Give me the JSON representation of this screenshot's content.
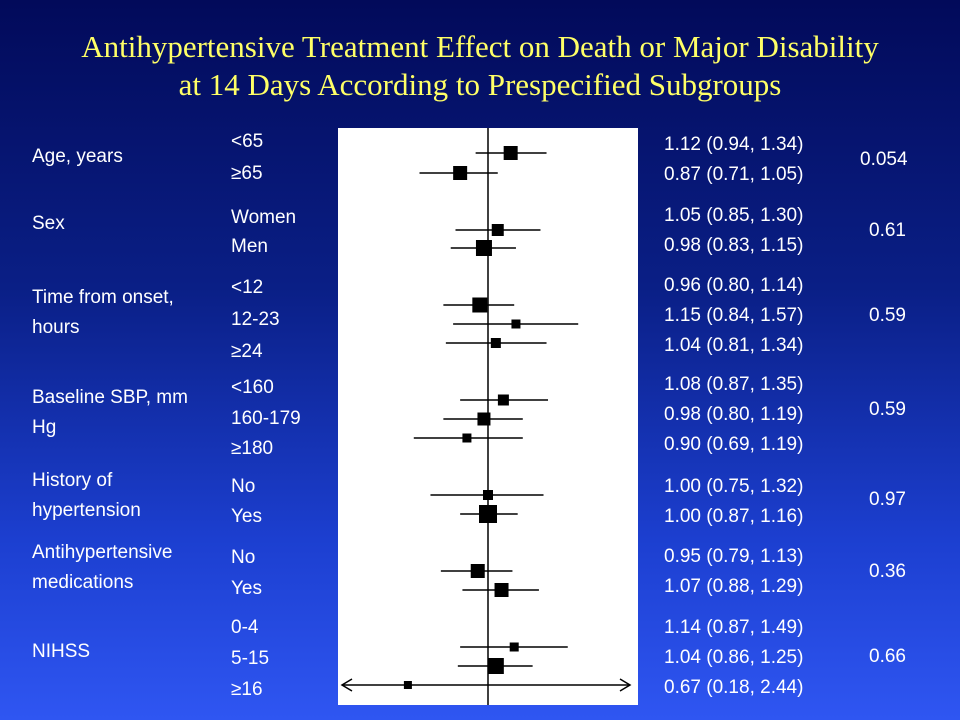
{
  "title_line1": "Antihypertensive Treatment Effect on Death or Major Disability",
  "title_line2": "at 14 Days According to Prespecified Subgroups",
  "colors": {
    "title": "#ffff66",
    "text": "#ffffff",
    "marker": "#000000",
    "panel": "#ffffff"
  },
  "chart_data": {
    "type": "forest",
    "reference_value": 1.0,
    "x_scale": "log",
    "xlim": [
      0.18,
      2.44
    ],
    "groups": [
      {
        "label": "Age, years",
        "p_value": "0.054",
        "rows": [
          {
            "subgroup": "<65",
            "estimate": 1.12,
            "lower": 0.94,
            "upper": 1.34,
            "ci_text": "1.12 (0.94, 1.34)"
          },
          {
            "subgroup": "≥65",
            "estimate": 0.87,
            "lower": 0.71,
            "upper": 1.05,
            "ci_text": "0.87 (0.71, 1.05)"
          }
        ]
      },
      {
        "label": "Sex",
        "p_value": "0.61",
        "rows": [
          {
            "subgroup": "Women",
            "estimate": 1.05,
            "lower": 0.85,
            "upper": 1.3,
            "ci_text": "1.05 (0.85, 1.30)"
          },
          {
            "subgroup": "Men",
            "estimate": 0.98,
            "lower": 0.83,
            "upper": 1.15,
            "ci_text": "0.98 (0.83, 1.15)"
          }
        ]
      },
      {
        "label": "Time from onset, hours",
        "p_value": "0.59",
        "rows": [
          {
            "subgroup": "<12",
            "estimate": 0.96,
            "lower": 0.8,
            "upper": 1.14,
            "ci_text": "0.96 (0.80, 1.14)"
          },
          {
            "subgroup": "12-23",
            "estimate": 1.15,
            "lower": 0.84,
            "upper": 1.57,
            "ci_text": "1.15 (0.84, 1.57)"
          },
          {
            "subgroup": "≥24",
            "estimate": 1.04,
            "lower": 0.81,
            "upper": 1.34,
            "ci_text": "1.04 (0.81, 1.34)"
          }
        ]
      },
      {
        "label": "Baseline SBP, mm Hg",
        "p_value": "0.59",
        "rows": [
          {
            "subgroup": "<160",
            "estimate": 1.08,
            "lower": 0.87,
            "upper": 1.35,
            "ci_text": "1.08 (0.87, 1.35)"
          },
          {
            "subgroup": "160-179",
            "estimate": 0.98,
            "lower": 0.8,
            "upper": 1.19,
            "ci_text": "0.98 (0.80, 1.19)"
          },
          {
            "subgroup": "≥180",
            "estimate": 0.9,
            "lower": 0.69,
            "upper": 1.19,
            "ci_text": "0.90 (0.69, 1.19)"
          }
        ]
      },
      {
        "label": "History of hypertension",
        "p_value": "0.97",
        "rows": [
          {
            "subgroup": "No",
            "estimate": 1.0,
            "lower": 0.75,
            "upper": 1.32,
            "ci_text": "1.00 (0.75, 1.32)"
          },
          {
            "subgroup": "Yes",
            "estimate": 1.0,
            "lower": 0.87,
            "upper": 1.16,
            "ci_text": "1.00 (0.87, 1.16)"
          }
        ]
      },
      {
        "label": "Antihypertensive medications",
        "p_value": "0.36",
        "rows": [
          {
            "subgroup": "No",
            "estimate": 0.95,
            "lower": 0.79,
            "upper": 1.13,
            "ci_text": "0.95 (0.79, 1.13)"
          },
          {
            "subgroup": "Yes",
            "estimate": 1.07,
            "lower": 0.88,
            "upper": 1.29,
            "ci_text": "1.07 (0.88, 1.29)"
          }
        ]
      },
      {
        "label": "NIHSS",
        "p_value": "0.66",
        "rows": [
          {
            "subgroup": "0-4",
            "estimate": 1.14,
            "lower": 0.87,
            "upper": 1.49,
            "ci_text": "1.14 (0.87, 1.49)"
          },
          {
            "subgroup": "5-15",
            "estimate": 1.04,
            "lower": 0.86,
            "upper": 1.25,
            "ci_text": "1.04 (0.86, 1.25)"
          },
          {
            "subgroup": "≥16",
            "estimate": 0.67,
            "lower": 0.18,
            "upper": 2.44,
            "ci_text": "0.67 (0.18, 2.44)"
          }
        ]
      }
    ]
  }
}
